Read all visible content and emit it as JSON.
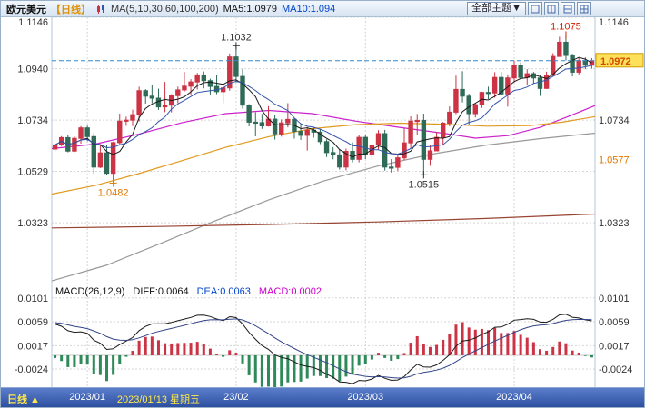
{
  "header": {
    "symbol": "欧元美元",
    "period_tag": "【日线】",
    "ma_settings": "MA(5,10,30,60,100,200)",
    "ma5_label": "MA5:1.0979",
    "ma10_label": "MA10:1.094",
    "theme_button": "全部主题▼"
  },
  "macd_panel": {
    "title": "MACD(26,12,9)",
    "diff_label": "DIFF:0.0064",
    "dea_label": "DEA:0.0063",
    "macd_label": "MACD:0.0002"
  },
  "bottom_bar": {
    "period_label": "日线 ▲"
  },
  "chart_data": {
    "type": "candlestick+macd",
    "title": "欧元美元 日线",
    "y_axis_left": [
      1.1146,
      1.094,
      1.0734,
      1.0529,
      1.0323
    ],
    "y_axis_right": [
      1.1146,
      1.0734,
      1.0323
    ],
    "current_price": 1.0972,
    "right_marker_orange": 1.0577,
    "macd_axis": [
      0.0101,
      0.0059,
      0.0017,
      -0.0024
    ],
    "price_range": {
      "top": 1.1146,
      "bottom": 1.0083
    },
    "macd_range": {
      "top": 0.0115,
      "bottom": -0.0056
    },
    "x_labels": [
      {
        "text": "2023/01",
        "index": 5,
        "selected": false
      },
      {
        "text": "2023/01/13 星期五",
        "index": 16,
        "selected": true
      },
      {
        "text": "23/02",
        "index": 28,
        "selected": false
      },
      {
        "text": "2023/03",
        "index": 48,
        "selected": false
      },
      {
        "text": "2023/04",
        "index": 71,
        "selected": false
      }
    ],
    "annotations": [
      {
        "text": "1.1032",
        "index": 28,
        "price": 1.1032,
        "kind": "high",
        "color": "#333333"
      },
      {
        "text": "1.0482",
        "index": 9,
        "price": 1.0482,
        "kind": "low",
        "color": "#e07800"
      },
      {
        "text": "1.0515",
        "index": 57,
        "price": 1.0515,
        "kind": "low",
        "color": "#333333"
      },
      {
        "text": "1.1075",
        "index": 79,
        "price": 1.1075,
        "kind": "high",
        "color": "#dd2200"
      }
    ],
    "candles": [
      [
        1.0618,
        1.064,
        1.0605,
        1.0635
      ],
      [
        1.0635,
        1.067,
        1.063,
        1.0664
      ],
      [
        1.0664,
        1.0675,
        1.0605,
        1.061
      ],
      [
        1.061,
        1.0668,
        1.0606,
        1.0661
      ],
      [
        1.0661,
        1.071,
        1.064,
        1.0703
      ],
      [
        1.0703,
        1.0712,
        1.065,
        1.0668
      ],
      [
        1.0668,
        1.0683,
        1.0519,
        1.0546
      ],
      [
        1.0546,
        1.0635,
        1.0542,
        1.0603
      ],
      [
        1.0603,
        1.0635,
        1.0515,
        1.0521
      ],
      [
        1.0521,
        1.0648,
        1.0482,
        1.0644
      ],
      [
        1.0644,
        1.076,
        1.0634,
        1.073
      ],
      [
        1.073,
        1.0748,
        1.0711,
        1.0734
      ],
      [
        1.0734,
        1.0776,
        1.071,
        1.0756
      ],
      [
        1.0756,
        1.0868,
        1.0729,
        1.0852
      ],
      [
        1.0852,
        1.0858,
        1.08,
        1.083
      ],
      [
        1.083,
        1.0874,
        1.0802,
        1.0822
      ],
      [
        1.0822,
        1.086,
        1.0775,
        1.0787
      ],
      [
        1.0787,
        1.0887,
        1.0766,
        1.0794
      ],
      [
        1.0794,
        1.0838,
        1.0765,
        1.0832
      ],
      [
        1.0832,
        1.0868,
        1.0802,
        1.0855
      ],
      [
        1.0855,
        1.0927,
        1.0848,
        1.087
      ],
      [
        1.087,
        1.0898,
        1.0835,
        1.0887
      ],
      [
        1.0887,
        1.0923,
        1.0857,
        1.0915
      ],
      [
        1.0915,
        1.0929,
        1.0861,
        1.0892
      ],
      [
        1.0892,
        1.09,
        1.0837,
        1.0869
      ],
      [
        1.0869,
        1.0913,
        1.0838,
        1.0848
      ],
      [
        1.0848,
        1.0874,
        1.0802,
        1.0863
      ],
      [
        1.0863,
        1.1001,
        1.0852,
        1.0987
      ],
      [
        1.0987,
        1.1032,
        1.0885,
        1.0909
      ],
      [
        1.0909,
        1.0938,
        1.078,
        1.0794
      ],
      [
        1.0794,
        1.0798,
        1.0709,
        1.0726
      ],
      [
        1.0726,
        1.0766,
        1.0669,
        1.0724
      ],
      [
        1.0724,
        1.0759,
        1.0699,
        1.0711
      ],
      [
        1.0711,
        1.079,
        1.0708,
        1.0738
      ],
      [
        1.0738,
        1.0754,
        1.0656,
        1.0679
      ],
      [
        1.0679,
        1.0737,
        1.0668,
        1.0723
      ],
      [
        1.0723,
        1.0802,
        1.0705,
        1.0737
      ],
      [
        1.0737,
        1.0744,
        1.066,
        1.0689
      ],
      [
        1.0689,
        1.0721,
        1.0655,
        1.0673
      ],
      [
        1.0673,
        1.0706,
        1.0612,
        1.0694
      ],
      [
        1.0694,
        1.0705,
        1.0664,
        1.0686
      ],
      [
        1.0686,
        1.0697,
        1.0638,
        1.0648
      ],
      [
        1.0648,
        1.0657,
        1.0586,
        1.0604
      ],
      [
        1.0604,
        1.0626,
        1.0577,
        1.0595
      ],
      [
        1.0595,
        1.0618,
        1.0536,
        1.0546
      ],
      [
        1.0546,
        1.062,
        1.0533,
        1.0609
      ],
      [
        1.0609,
        1.0645,
        1.0565,
        1.0577
      ],
      [
        1.0577,
        1.0673,
        1.0565,
        1.0665
      ],
      [
        1.0665,
        1.0674,
        1.0578,
        1.0597
      ],
      [
        1.0597,
        1.0639,
        1.0576,
        1.0634
      ],
      [
        1.0634,
        1.0694,
        1.0614,
        1.068
      ],
      [
        1.068,
        1.0695,
        1.0532,
        1.0546
      ],
      [
        1.0546,
        1.0578,
        1.0524,
        1.0545
      ],
      [
        1.0545,
        1.06,
        1.0531,
        1.0583
      ],
      [
        1.0583,
        1.0701,
        1.0574,
        1.0643
      ],
      [
        1.0643,
        1.0749,
        1.062,
        1.073
      ],
      [
        1.073,
        1.0759,
        1.0674,
        1.0733
      ],
      [
        1.0733,
        1.076,
        1.0515,
        1.0577
      ],
      [
        1.0577,
        1.0636,
        1.0551,
        1.0611
      ],
      [
        1.0611,
        1.0686,
        1.0611,
        1.0665
      ],
      [
        1.0665,
        1.0727,
        1.0632,
        1.0722
      ],
      [
        1.0722,
        1.0789,
        1.0709,
        1.0766
      ],
      [
        1.0766,
        1.0912,
        1.0758,
        1.0857
      ],
      [
        1.0857,
        1.093,
        1.0805,
        1.083
      ],
      [
        1.083,
        1.084,
        1.0713,
        1.076
      ],
      [
        1.076,
        1.0803,
        1.0745,
        1.0796
      ],
      [
        1.0796,
        1.0848,
        1.0783,
        1.0845
      ],
      [
        1.0845,
        1.0868,
        1.0818,
        1.0843
      ],
      [
        1.0843,
        1.0926,
        1.0824,
        1.0905
      ],
      [
        1.0905,
        1.0927,
        1.0836,
        1.0839
      ],
      [
        1.0839,
        1.0917,
        1.0788,
        1.0903
      ],
      [
        1.0903,
        1.0973,
        1.0885,
        1.0952
      ],
      [
        1.0952,
        1.0965,
        1.0898,
        1.0905
      ],
      [
        1.0905,
        1.0938,
        1.0875,
        1.092
      ],
      [
        1.092,
        1.0927,
        1.088,
        1.0903
      ],
      [
        1.0903,
        1.0917,
        1.0831,
        1.0861
      ],
      [
        1.0861,
        1.0928,
        1.0859,
        1.0913
      ],
      [
        1.0913,
        1.1002,
        1.091,
        1.0989
      ],
      [
        1.0989,
        1.1068,
        1.0988,
        1.1046
      ],
      [
        1.1046,
        1.1075,
        1.0973,
        1.0993
      ],
      [
        1.0993,
        1.1,
        1.0909,
        1.0926
      ],
      [
        1.0926,
        1.0983,
        1.0917,
        1.0972
      ],
      [
        1.0972,
        1.0985,
        1.0938,
        1.0954
      ],
      [
        1.0954,
        1.0982,
        1.094,
        1.0972
      ]
    ],
    "ma_overlays": [
      {
        "name": "MA30",
        "color": "#cc22cc",
        "points": [
          [
            0,
            1.062
          ],
          [
            0.08,
            1.0638
          ],
          [
            0.16,
            1.0678
          ],
          [
            0.24,
            1.0724
          ],
          [
            0.32,
            1.076
          ],
          [
            0.4,
            1.0773
          ],
          [
            0.48,
            1.076
          ],
          [
            0.56,
            1.073
          ],
          [
            0.64,
            1.0705
          ],
          [
            0.72,
            1.0682
          ],
          [
            0.78,
            1.0662
          ],
          [
            0.84,
            1.0672
          ],
          [
            0.9,
            1.0706
          ],
          [
            0.95,
            1.0748
          ],
          [
            1,
            1.0792
          ]
        ]
      },
      {
        "name": "MA60",
        "color": "#e09a20",
        "points": [
          [
            0,
            1.0438
          ],
          [
            0.08,
            1.0472
          ],
          [
            0.16,
            1.052
          ],
          [
            0.24,
            1.0572
          ],
          [
            0.32,
            1.0625
          ],
          [
            0.4,
            1.0668
          ],
          [
            0.48,
            1.07
          ],
          [
            0.56,
            1.0716
          ],
          [
            0.64,
            1.0722
          ],
          [
            0.72,
            1.0718
          ],
          [
            0.8,
            1.071
          ],
          [
            0.88,
            1.0712
          ],
          [
            0.94,
            1.0726
          ],
          [
            1,
            1.0748
          ]
        ]
      },
      {
        "name": "MA100",
        "color": "#999999",
        "points": [
          [
            0,
            1.009
          ],
          [
            0.1,
            1.0152
          ],
          [
            0.2,
            1.024
          ],
          [
            0.3,
            1.033
          ],
          [
            0.4,
            1.0415
          ],
          [
            0.5,
            1.049
          ],
          [
            0.6,
            1.055
          ],
          [
            0.7,
            1.0598
          ],
          [
            0.8,
            1.0634
          ],
          [
            0.9,
            1.066
          ],
          [
            1,
            1.0682
          ]
        ]
      },
      {
        "name": "MA200",
        "color": "#994433",
        "points": [
          [
            0,
            1.0302
          ],
          [
            0.2,
            1.0308
          ],
          [
            0.4,
            1.0316
          ],
          [
            0.6,
            1.0326
          ],
          [
            0.8,
            1.034
          ],
          [
            1,
            1.0358
          ]
        ]
      }
    ],
    "macd_seed": {
      "ema12_offset": 0.0031,
      "ema26_offset": -0.0031,
      "dea_init": 0.0058
    },
    "colors": {
      "up": "#cc3344",
      "down": "#2f6b57",
      "ma5": "#1a1a1a",
      "ma10": "#3355aa",
      "diff": "#1a1a1a",
      "dea": "#334488",
      "hist_pos": "#cc3344",
      "hist_neg": "#2f8a5a",
      "price_line": "#3388cc",
      "grid": "#d5d5d5",
      "badge_bg": "#ffe05a",
      "badge_border": "#cf9c00",
      "badge_text": "#d24a00"
    }
  }
}
